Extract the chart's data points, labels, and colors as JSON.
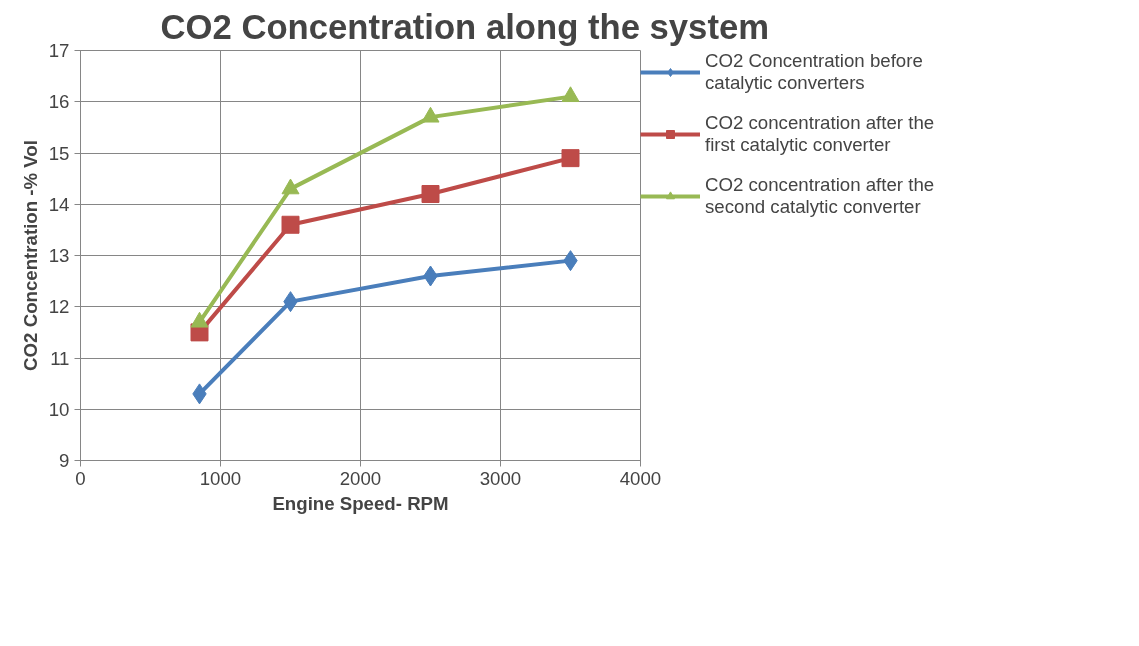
{
  "chart_data": {
    "type": "line",
    "title": "CO2 Concentration along the system",
    "xlabel": "Engine Speed- RPM",
    "ylabel": "CO2 Concentration -% Vol",
    "x": [
      850,
      1500,
      2500,
      3500
    ],
    "series": [
      {
        "name": "CO2 Concentration before catalytic converters",
        "color": "#4a7ebb",
        "marker": "diamond",
        "values": [
          10.3,
          12.1,
          12.6,
          12.9
        ]
      },
      {
        "name": "CO2 concentration after the first catalytic converter",
        "color": "#be4b48",
        "marker": "square",
        "values": [
          11.5,
          13.6,
          14.2,
          14.9
        ]
      },
      {
        "name": "CO2 concentration after the second catalytic converter",
        "color": "#98b954",
        "marker": "triangle",
        "values": [
          11.7,
          14.3,
          15.7,
          16.1
        ]
      }
    ],
    "xlim": [
      0,
      4000
    ],
    "xticks": [
      0,
      1000,
      2000,
      3000,
      4000
    ],
    "ylim": [
      9,
      17
    ],
    "yticks": [
      9,
      10,
      11,
      12,
      13,
      14,
      15,
      16,
      17
    ],
    "grid": true,
    "legend": "right",
    "line_style": "solid"
  }
}
